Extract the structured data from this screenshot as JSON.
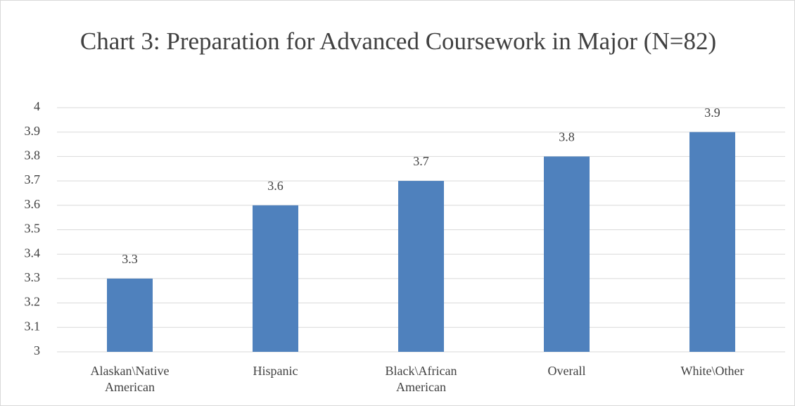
{
  "chart_data": {
    "type": "bar",
    "title": "Chart 3: Preparation for Advanced Coursework in Major (N=82)",
    "categories": [
      "Alaskan\\Native American",
      "Hispanic",
      "Black\\African American",
      "Overall",
      "White\\Other"
    ],
    "values": [
      3.3,
      3.6,
      3.7,
      3.8,
      3.9
    ],
    "color": "#4f81bd",
    "ylim": [
      3,
      4
    ],
    "yticks": [
      3,
      3.1,
      3.2,
      3.3,
      3.4,
      3.5,
      3.6,
      3.7,
      3.8,
      3.9,
      4
    ],
    "grid": true
  }
}
